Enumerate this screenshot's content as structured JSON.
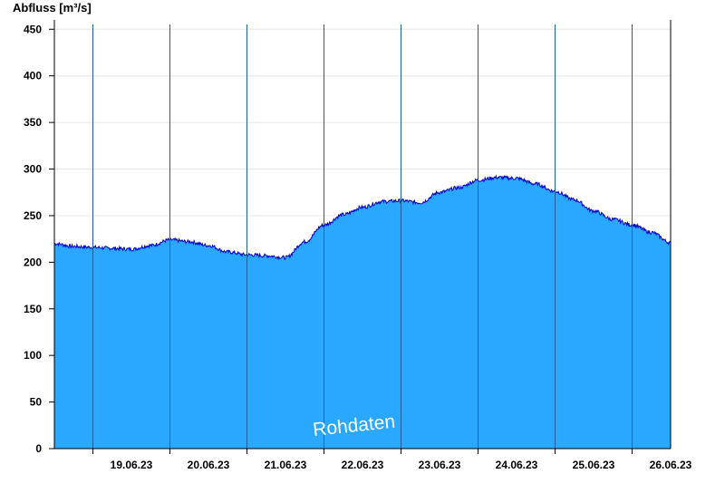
{
  "chart_data": {
    "type": "area",
    "title": "",
    "ylabel": "Abfluss [m³/s]",
    "xlabel": "",
    "ylim": [
      0,
      460
    ],
    "yticks": [
      0,
      50,
      100,
      150,
      200,
      250,
      300,
      350,
      400,
      450
    ],
    "x_range": [
      "18.06.23 12:00",
      "26.06.23 12:00"
    ],
    "day_ticks": [
      "19.06.23",
      "20.06.23",
      "21.06.23",
      "22.06.23",
      "23.06.23",
      "24.06.23",
      "25.06.23",
      "26.06.23"
    ],
    "grid": true,
    "legend": "none",
    "watermark": "Rohdaten",
    "colors": {
      "fill": "#2aa8ff",
      "line": "#0000cc",
      "divider": "#1a5f9a",
      "grid": "#e6e6e6"
    },
    "series": [
      {
        "x": [
          "18.06.23 12:00",
          "18.06.23 18:00",
          "19.06.23 00:00",
          "19.06.23 06:00",
          "19.06.23 12:00",
          "19.06.23 18:00",
          "20.06.23 00:00",
          "20.06.23 06:00",
          "20.06.23 12:00",
          "20.06.23 18:00",
          "21.06.23 00:00",
          "21.06.23 06:00",
          "21.06.23 12:00",
          "21.06.23 18:00",
          "22.06.23 00:00",
          "22.06.23 06:00",
          "22.06.23 12:00",
          "22.06.23 18:00",
          "23.06.23 00:00",
          "23.06.23 06:00",
          "23.06.23 12:00",
          "23.06.23 18:00",
          "24.06.23 00:00",
          "24.06.23 06:00",
          "24.06.23 12:00",
          "24.06.23 18:00",
          "25.06.23 00:00",
          "25.06.23 06:00",
          "25.06.23 12:00",
          "25.06.23 18:00",
          "26.06.23 00:00",
          "26.06.23 06:00",
          "26.06.23 12:00"
        ],
        "values": [
          220,
          217,
          216,
          215,
          214,
          218,
          224,
          222,
          218,
          211,
          208,
          207,
          205,
          222,
          240,
          251,
          259,
          265,
          266,
          264,
          275,
          280,
          288,
          291,
          290,
          284,
          276,
          267,
          255,
          246,
          240,
          232,
          221
        ]
      }
    ]
  }
}
